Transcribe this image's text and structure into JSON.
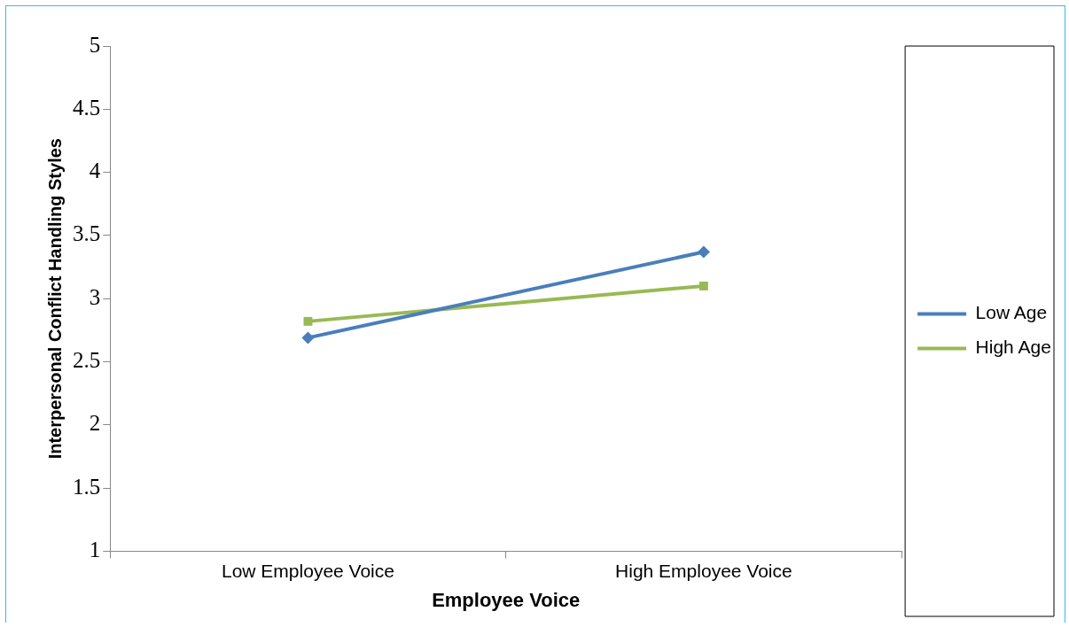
{
  "chart_data": {
    "type": "line",
    "xlabel": "Employee Voice",
    "ylabel": "Interpersonal Conflict Handling Styles",
    "categories": [
      "Low Employee Voice",
      "High Employee Voice"
    ],
    "series": [
      {
        "name": "Low Age",
        "color": "#4a7ebb",
        "marker": "diamond",
        "values": [
          2.69,
          3.37
        ]
      },
      {
        "name": "High Age",
        "color": "#98b954",
        "marker": "square",
        "values": [
          2.82,
          3.1
        ]
      }
    ],
    "ylim": [
      1,
      5
    ],
    "yticks": [
      1,
      1.5,
      2,
      2.5,
      3,
      3.5,
      4,
      4.5,
      5
    ],
    "grid": false,
    "legend": "right",
    "line_style": "solid"
  }
}
